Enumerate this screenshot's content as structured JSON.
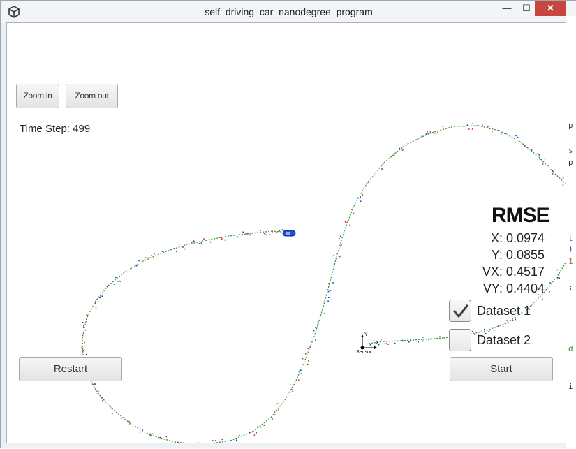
{
  "window": {
    "title": "self_driving_car_nanodegree_program",
    "minimize": "—",
    "maximize": "☐",
    "close": "✕"
  },
  "toolbar": {
    "zoom_in_label": "Zoom in",
    "zoom_out_label": "Zoom out"
  },
  "status": {
    "time_step": "Time Step: 499"
  },
  "rmse": {
    "title": "RMSE",
    "x": "X: 0.0974",
    "y": "Y: 0.0855",
    "vx": "VX: 0.4517",
    "vy": "VY: 0.4404"
  },
  "datasets": [
    {
      "label": "Dataset 1",
      "checked": true
    },
    {
      "label": "Dataset 2",
      "checked": false
    }
  ],
  "controls": {
    "restart_label": "Restart",
    "start_label": "Start"
  },
  "sensor": {
    "label": "Sensor",
    "axis_y": "Y",
    "axis_x": "X"
  },
  "colors": {
    "track": "#2e9a2e",
    "lidar": "#d03030",
    "radar": "#1a3fd0",
    "car": "#1f4fd6",
    "close_button": "#c7463e"
  },
  "background_window": {
    "edge_glyphs": [
      "p",
      "s",
      "p",
      "t",
      ")",
      "1",
      ";",
      "d",
      "i"
    ]
  }
}
